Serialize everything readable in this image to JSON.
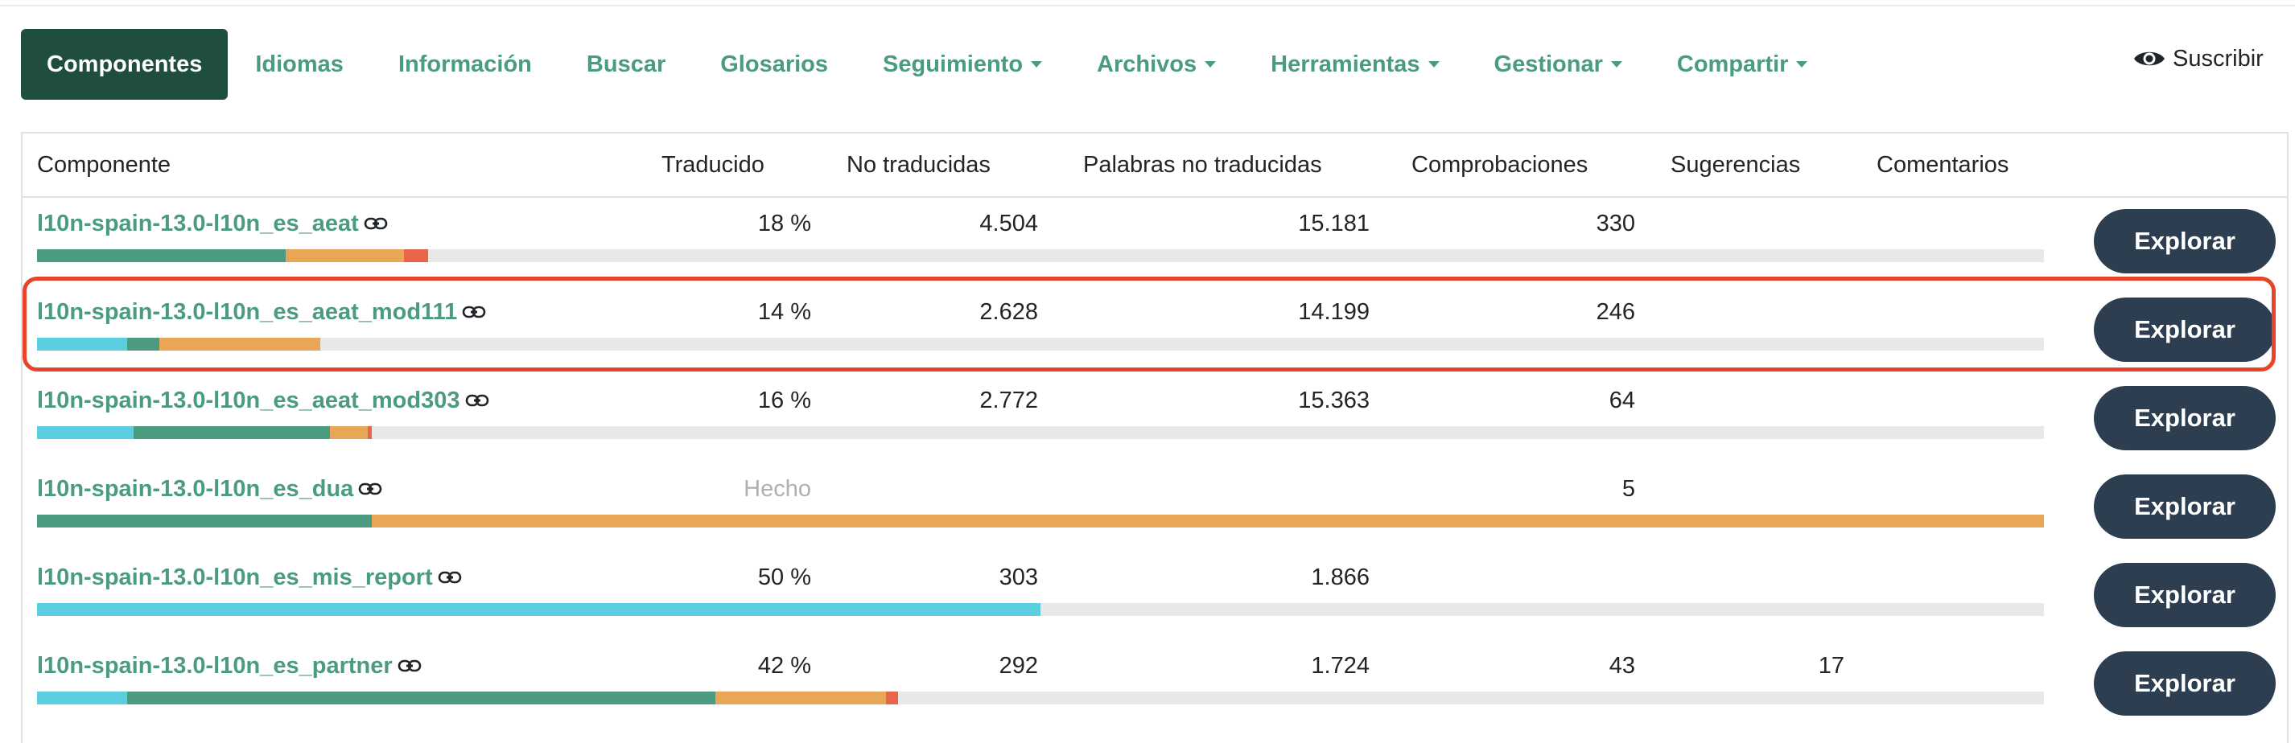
{
  "nav": {
    "items": [
      {
        "label": "Componentes",
        "active": true,
        "dropdown": false
      },
      {
        "label": "Idiomas",
        "active": false,
        "dropdown": false
      },
      {
        "label": "Información",
        "active": false,
        "dropdown": false
      },
      {
        "label": "Buscar",
        "active": false,
        "dropdown": false
      },
      {
        "label": "Glosarios",
        "active": false,
        "dropdown": false
      },
      {
        "label": "Seguimiento",
        "active": false,
        "dropdown": true
      },
      {
        "label": "Archivos",
        "active": false,
        "dropdown": true
      },
      {
        "label": "Herramientas",
        "active": false,
        "dropdown": true
      },
      {
        "label": "Gestionar",
        "active": false,
        "dropdown": true
      },
      {
        "label": "Compartir",
        "active": false,
        "dropdown": true
      }
    ],
    "subscribe_label": "Suscribir"
  },
  "colors": {
    "accent": "#4a9b7f",
    "active_nav": "#1f4e40",
    "button": "#2c3e50",
    "highlight": "#e8442a",
    "bar_cyan": "#5bcfe0",
    "bar_green": "#4a9b7f",
    "bar_orange": "#eaa657",
    "bar_red": "#e8644a",
    "bar_track": "#e8e8e8"
  },
  "table": {
    "headers": {
      "component": "Componente",
      "translated": "Traducido",
      "untranslated": "No traducidas",
      "untranslated_words": "Palabras no traducidas",
      "checks": "Comprobaciones",
      "suggestions": "Sugerencias",
      "comments": "Comentarios"
    },
    "button_label": "Explorar",
    "rows": [
      {
        "name": "l10n-spain-13.0-l10n_es_aeat",
        "translated": "18 %",
        "untranslated": "4.504",
        "words": "15.181",
        "checks": "330",
        "suggestions": "",
        "comments": "",
        "done": false,
        "progress": [
          {
            "color": "green",
            "fraction": 0.124
          },
          {
            "color": "orange",
            "fraction": 0.059
          },
          {
            "color": "red",
            "fraction": 0.012
          }
        ]
      },
      {
        "name": "l10n-spain-13.0-l10n_es_aeat_mod111",
        "translated": "14 %",
        "untranslated": "2.628",
        "words": "14.199",
        "checks": "246",
        "suggestions": "",
        "comments": "",
        "done": false,
        "highlighted": true,
        "progress": [
          {
            "color": "cyan",
            "fraction": 0.045
          },
          {
            "color": "green",
            "fraction": 0.016
          },
          {
            "color": "orange",
            "fraction": 0.08
          }
        ]
      },
      {
        "name": "l10n-spain-13.0-l10n_es_aeat_mod303",
        "translated": "16 %",
        "untranslated": "2.772",
        "words": "15.363",
        "checks": "64",
        "suggestions": "",
        "comments": "",
        "done": false,
        "progress": [
          {
            "color": "cyan",
            "fraction": 0.048
          },
          {
            "color": "green",
            "fraction": 0.098
          },
          {
            "color": "orange",
            "fraction": 0.019
          },
          {
            "color": "red",
            "fraction": 0.002
          }
        ]
      },
      {
        "name": "l10n-spain-13.0-l10n_es_dua",
        "translated": "Hecho",
        "untranslated": "",
        "words": "",
        "checks": "5",
        "suggestions": "",
        "comments": "",
        "done": true,
        "progress": [
          {
            "color": "green",
            "fraction": 0.167
          },
          {
            "color": "orange",
            "fraction": 0.833
          }
        ]
      },
      {
        "name": "l10n-spain-13.0-l10n_es_mis_report",
        "translated": "50 %",
        "untranslated": "303",
        "words": "1.866",
        "checks": "",
        "suggestions": "",
        "comments": "",
        "done": false,
        "progress": [
          {
            "color": "cyan",
            "fraction": 0.5
          }
        ]
      },
      {
        "name": "l10n-spain-13.0-l10n_es_partner",
        "translated": "42 %",
        "untranslated": "292",
        "words": "1.724",
        "checks": "43",
        "suggestions": "17",
        "comments": "",
        "done": false,
        "progress": [
          {
            "color": "cyan",
            "fraction": 0.045
          },
          {
            "color": "green",
            "fraction": 0.293
          },
          {
            "color": "orange",
            "fraction": 0.085
          },
          {
            "color": "red",
            "fraction": 0.006
          }
        ]
      }
    ]
  }
}
